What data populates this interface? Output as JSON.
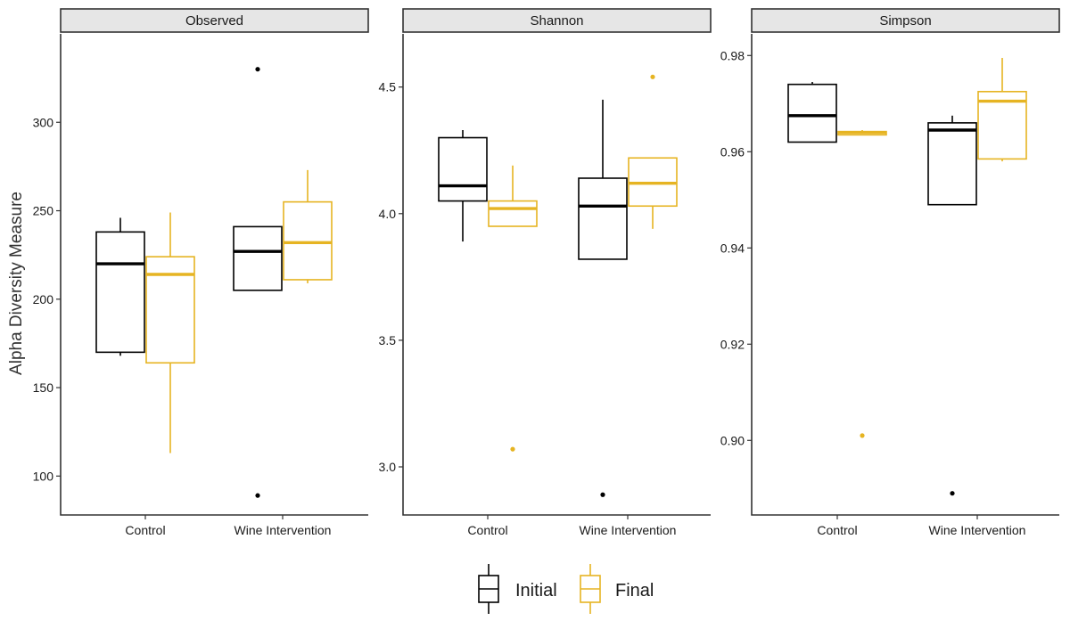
{
  "chart_data": {
    "type": "boxplot",
    "ylabel": "Alpha Diversity Measure",
    "categories": [
      "Control",
      "Wine Intervention"
    ],
    "legend": {
      "placement": "bottom",
      "entries": [
        {
          "name": "Initial",
          "color": "#000000"
        },
        {
          "name": "Final",
          "color": "#e6b422"
        }
      ]
    },
    "panels": [
      {
        "title": "Observed",
        "ylim": [
          78,
          350
        ],
        "yticks": [
          100,
          150,
          200,
          250,
          300
        ],
        "ytick_labels": [
          "100",
          "150",
          "200",
          "250",
          "300"
        ],
        "groups": [
          {
            "category": "Control",
            "series": "Initial",
            "q1": 170,
            "median": 220,
            "q3": 238,
            "whisker_low": 168,
            "whisker_high": 246,
            "outliers": []
          },
          {
            "category": "Control",
            "series": "Final",
            "q1": 164,
            "median": 214,
            "q3": 224,
            "whisker_low": 113,
            "whisker_high": 249,
            "outliers": []
          },
          {
            "category": "Wine Intervention",
            "series": "Initial",
            "q1": 205,
            "median": 227,
            "q3": 241,
            "whisker_low": 205,
            "whisker_high": 241,
            "outliers": [
              330,
              89
            ]
          },
          {
            "category": "Wine Intervention",
            "series": "Final",
            "q1": 211,
            "median": 232,
            "q3": 255,
            "whisker_low": 209,
            "whisker_high": 273,
            "outliers": []
          }
        ]
      },
      {
        "title": "Shannon",
        "ylim": [
          2.81,
          4.71
        ],
        "yticks": [
          3.0,
          3.5,
          4.0,
          4.5
        ],
        "ytick_labels": [
          "3.0",
          "3.5",
          "4.0",
          "4.5"
        ],
        "groups": [
          {
            "category": "Control",
            "series": "Initial",
            "q1": 4.05,
            "median": 4.11,
            "q3": 4.3,
            "whisker_low": 3.89,
            "whisker_high": 4.33,
            "outliers": []
          },
          {
            "category": "Control",
            "series": "Final",
            "q1": 3.95,
            "median": 4.02,
            "q3": 4.05,
            "whisker_low": 3.95,
            "whisker_high": 4.19,
            "outliers": [
              3.07
            ]
          },
          {
            "category": "Wine Intervention",
            "series": "Initial",
            "q1": 3.82,
            "median": 4.03,
            "q3": 4.14,
            "whisker_low": 3.82,
            "whisker_high": 4.45,
            "outliers": [
              2.89
            ]
          },
          {
            "category": "Wine Intervention",
            "series": "Final",
            "q1": 4.03,
            "median": 4.12,
            "q3": 4.22,
            "whisker_low": 3.94,
            "whisker_high": 4.22,
            "outliers": [
              4.54
            ]
          }
        ]
      },
      {
        "title": "Simpson",
        "ylim": [
          0.8845,
          0.9845
        ],
        "yticks": [
          0.9,
          0.92,
          0.94,
          0.96,
          0.98
        ],
        "ytick_labels": [
          "0.90",
          "0.92",
          "0.94",
          "0.96",
          "0.98"
        ],
        "groups": [
          {
            "category": "Control",
            "series": "Initial",
            "q1": 0.962,
            "median": 0.9675,
            "q3": 0.974,
            "whisker_low": 0.962,
            "whisker_high": 0.9745,
            "outliers": []
          },
          {
            "category": "Control",
            "series": "Final",
            "q1": 0.9635,
            "median": 0.964,
            "q3": 0.9642,
            "whisker_low": 0.9635,
            "whisker_high": 0.9645,
            "outliers": [
              0.901
            ]
          },
          {
            "category": "Wine Intervention",
            "series": "Initial",
            "q1": 0.949,
            "median": 0.9645,
            "q3": 0.966,
            "whisker_low": 0.949,
            "whisker_high": 0.9675,
            "outliers": [
              0.889
            ]
          },
          {
            "category": "Wine Intervention",
            "series": "Final",
            "q1": 0.9585,
            "median": 0.9705,
            "q3": 0.9725,
            "whisker_low": 0.958,
            "whisker_high": 0.9795,
            "outliers": []
          }
        ]
      }
    ]
  }
}
